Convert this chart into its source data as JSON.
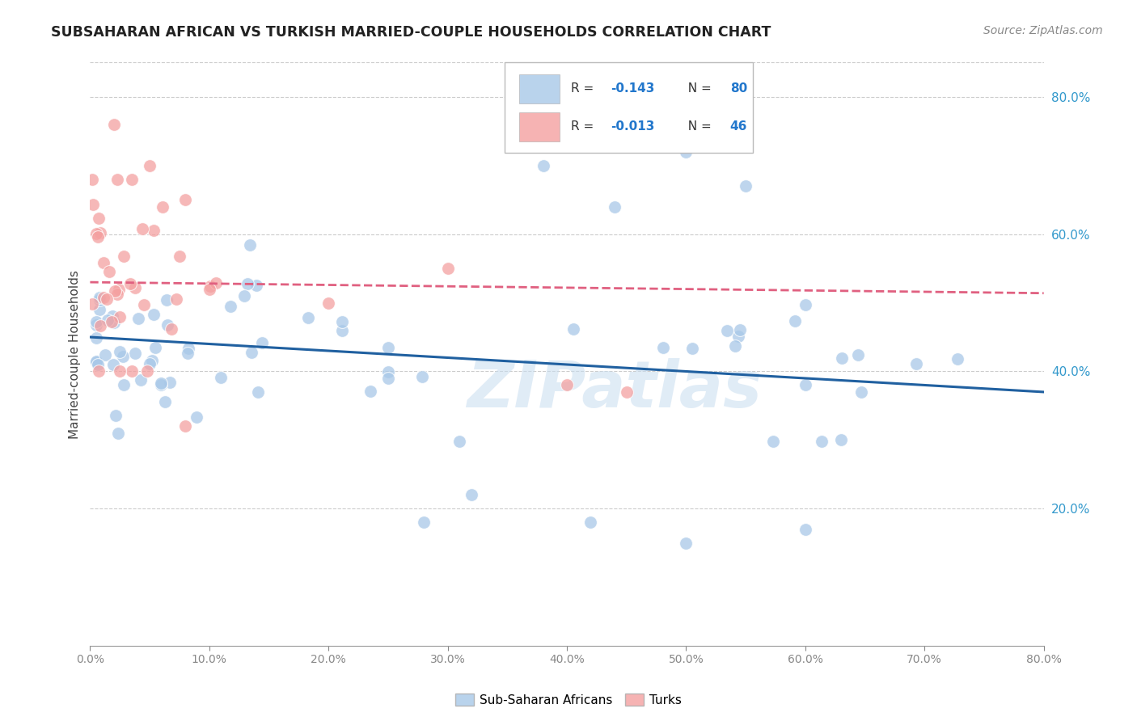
{
  "title": "SUBSAHARAN AFRICAN VS TURKISH MARRIED-COUPLE HOUSEHOLDS CORRELATION CHART",
  "source": "Source: ZipAtlas.com",
  "ylabel": "Married-couple Households",
  "legend_label1": "Sub-Saharan Africans",
  "legend_label2": "Turks",
  "blue_color": "#a8c8e8",
  "pink_color": "#f4a0a0",
  "blue_line_color": "#2060a0",
  "pink_line_color": "#e06080",
  "background_color": "#ffffff",
  "grid_color": "#cccccc",
  "watermark": "ZIPatlas",
  "xmin": 0.0,
  "xmax": 80.0,
  "ymin": 0.0,
  "ymax": 85.0,
  "yticks": [
    20.0,
    40.0,
    60.0,
    80.0
  ],
  "ytick_labels": [
    "20.0%",
    "40.0%",
    "60.0%",
    "80.0%"
  ],
  "blue_intercept": 45.0,
  "blue_slope": -0.1,
  "pink_intercept": 53.0,
  "pink_slope": -0.02,
  "blue_N": 80,
  "pink_N": 46,
  "blue_R": "-0.143",
  "pink_R": "-0.013"
}
